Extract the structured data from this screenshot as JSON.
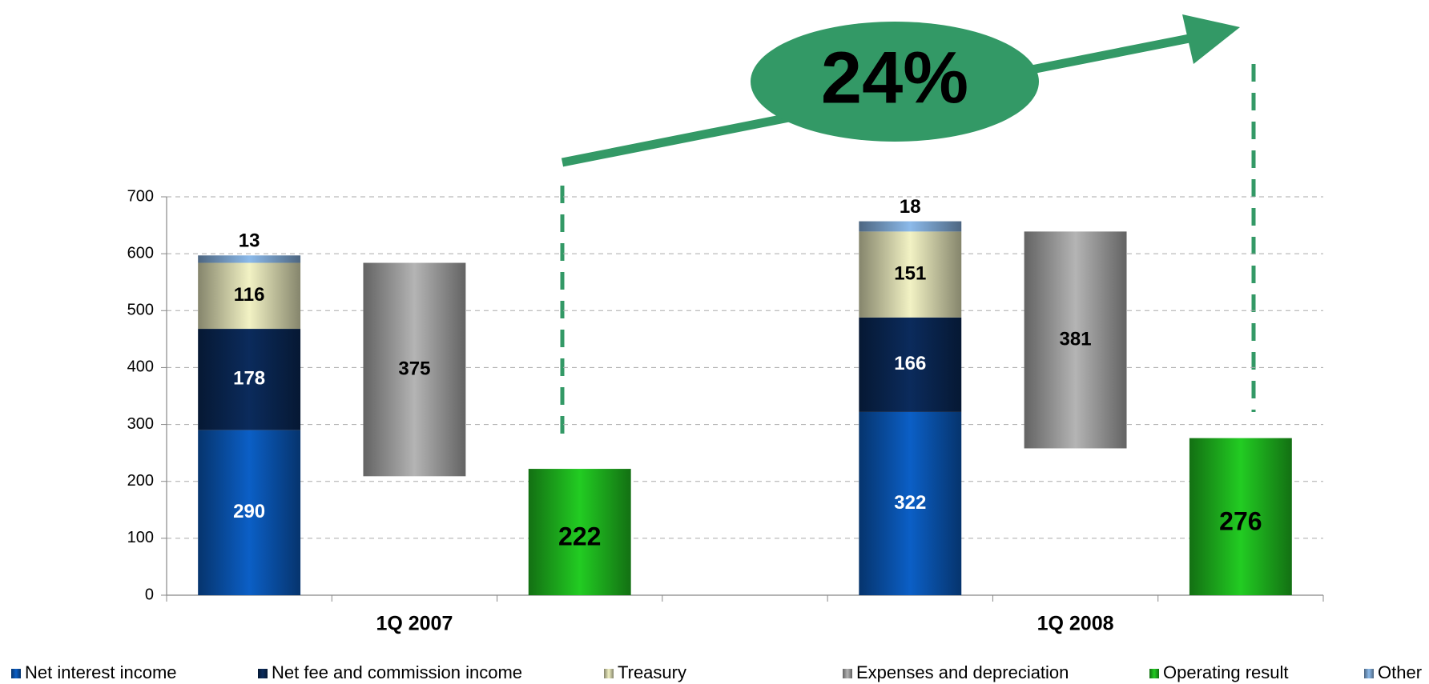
{
  "chart_data": {
    "type": "bar",
    "categories": [
      null,
      "1Q 2007",
      null,
      null,
      null,
      "1Q 2008",
      null
    ],
    "series": [
      {
        "name": "Net interest income",
        "color": "#0b5fc6",
        "values": [
          290,
          null,
          null,
          null,
          322,
          null,
          null
        ]
      },
      {
        "name": "Net fee and commission income",
        "color": "#0b2b5c",
        "values": [
          178,
          null,
          null,
          null,
          166,
          null,
          null
        ]
      },
      {
        "name": "Treasury",
        "color": "#f2f2c4",
        "values": [
          116,
          null,
          null,
          null,
          151,
          null,
          null
        ]
      },
      {
        "name": "Expenses and depreciation",
        "color": "#b4b4b4",
        "values": [
          null,
          375,
          null,
          null,
          null,
          381,
          null
        ]
      },
      {
        "name": "Operating result",
        "color": "#22cc22",
        "values": [
          null,
          null,
          222,
          null,
          null,
          null,
          276
        ]
      },
      {
        "name": "Other",
        "color": "#8cbaea",
        "values": [
          13,
          null,
          null,
          null,
          18,
          null,
          null
        ]
      }
    ],
    "ylim": [
      0,
      700
    ],
    "yticks": [
      0,
      100,
      200,
      300,
      400,
      500,
      600,
      700
    ],
    "grid": true,
    "legend": "bottom",
    "annotation": "24%"
  }
}
